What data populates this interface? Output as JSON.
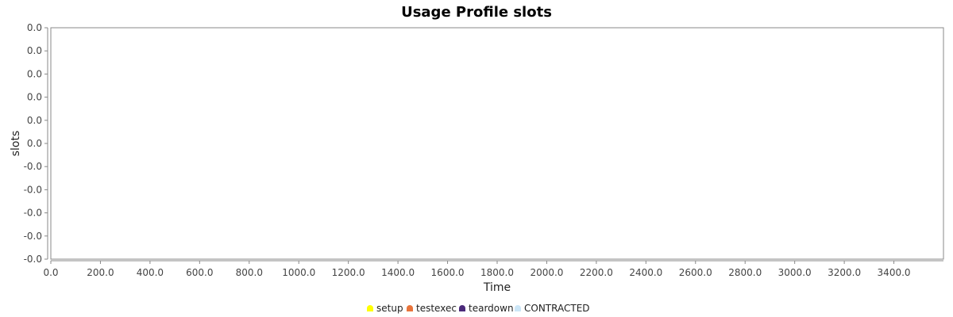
{
  "chart_data": {
    "type": "area",
    "title": "Usage Profile slots",
    "xlabel": "Time",
    "ylabel": "slots",
    "xlim": [
      0,
      3600
    ],
    "x_ticks": [
      "0.0",
      "200.0",
      "400.0",
      "600.0",
      "800.0",
      "1000.0",
      "1200.0",
      "1400.0",
      "1600.0",
      "1800.0",
      "2000.0",
      "2200.0",
      "2400.0",
      "2600.0",
      "2800.0",
      "3000.0",
      "3200.0",
      "3400.0"
    ],
    "y_ticks": [
      "0.0",
      "0.0",
      "0.0",
      "0.0",
      "0.0",
      "0.0",
      "-0.0",
      "-0.0",
      "-0.0",
      "-0.0",
      "-0.0"
    ],
    "grid": false,
    "legend_placement": "bottom-center",
    "series": [
      {
        "name": "setup",
        "color": "#ffff00",
        "values": []
      },
      {
        "name": "testexec",
        "color": "#e8743b",
        "values": []
      },
      {
        "name": "teardown",
        "color": "#4b2a7a",
        "values": []
      },
      {
        "name": "CONTRACTED",
        "color": "#cce6f7",
        "values": []
      }
    ]
  }
}
